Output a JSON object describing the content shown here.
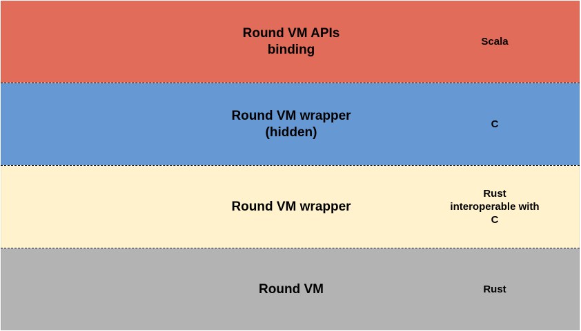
{
  "layers": [
    {
      "name": "Round VM APIs\nbinding",
      "language": "Scala",
      "color": "#e06c59"
    },
    {
      "name": "Round VM wrapper\n(hidden)",
      "language": "C",
      "color": "#6699d3"
    },
    {
      "name": "Round VM wrapper",
      "language": "Rust\ninteroperable with\nC",
      "color": "#fff2cc"
    },
    {
      "name": "Round VM",
      "language": "Rust",
      "color": "#b3b3b3"
    }
  ]
}
